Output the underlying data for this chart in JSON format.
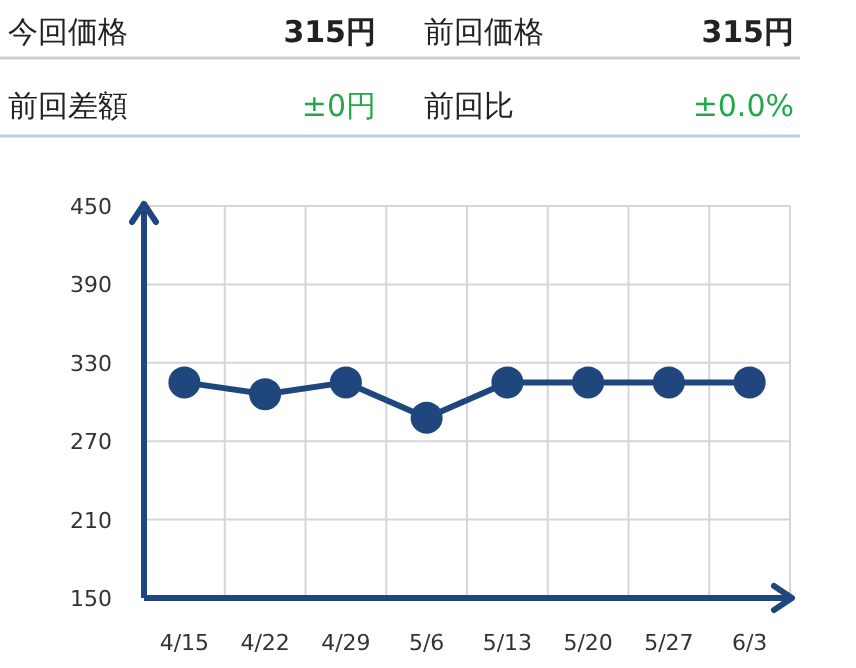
{
  "chart_data": {
    "type": "line",
    "annotations": [
      "今回価格",
      "315円",
      "前回価格",
      "315円",
      "前回差額",
      "±0円",
      "前回比",
      "±0.0%"
    ],
    "categories": [
      "4/15",
      "4/22",
      "4/29",
      "5/6",
      "5/13",
      "5/20",
      "5/27",
      "6/3"
    ],
    "series": [
      {
        "color": "#1f477e",
        "values": [
          315,
          306,
          315,
          288,
          315,
          315,
          315,
          315
        ]
      }
    ],
    "ylim": [
      150,
      450
    ],
    "yticks": [
      150,
      210,
      270,
      330,
      390,
      450
    ],
    "grid": true,
    "marker": "circle",
    "line_style": "solid"
  }
}
